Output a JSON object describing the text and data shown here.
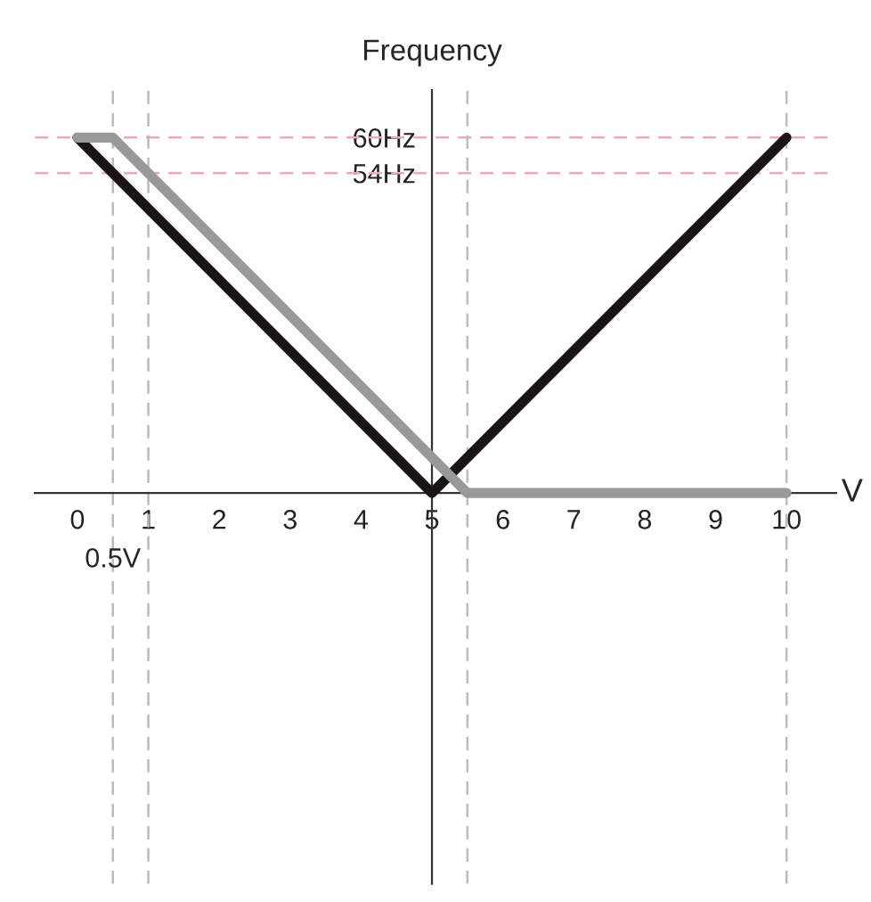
{
  "chart_data": {
    "type": "line",
    "xlabel": "V",
    "ylabel": "Frequency",
    "series": [
      {
        "color": "#1a1414",
        "x": [
          0,
          5,
          10
        ],
        "values": [
          60,
          0,
          60
        ]
      },
      {
        "color": "#999999",
        "x": [
          0,
          0.5,
          5.5,
          10
        ],
        "values": [
          60,
          60,
          0,
          0
        ]
      }
    ],
    "xlim": [
      -0.6,
      10.7
    ],
    "ylim": [
      -66,
      68
    ],
    "xticks": [
      0,
      1,
      2,
      3,
      4,
      5,
      6,
      7,
      8,
      9,
      10
    ],
    "yticks": [
      {
        "value": 54,
        "label": "54Hz"
      },
      {
        "value": 60,
        "label": "60Hz"
      }
    ],
    "ref_lines": [
      {
        "axis": "y",
        "value": 60,
        "color": "#f4a6c0",
        "line_style": "dashed"
      },
      {
        "axis": "y",
        "value": 54,
        "color": "#f4a6c0",
        "line_style": "dashed"
      },
      {
        "axis": "x",
        "value": 0.5,
        "color": "#bbbbbb",
        "line_style": "dashed"
      },
      {
        "axis": "x",
        "value": 1,
        "color": "#bbbbbb",
        "line_style": "dashed"
      },
      {
        "axis": "x",
        "value": 5.5,
        "color": "#bbbbbb",
        "line_style": "dashed"
      },
      {
        "axis": "x",
        "value": 10,
        "color": "#bbbbbb",
        "line_style": "dashed"
      }
    ],
    "annotations": [
      {
        "text": "0.5V",
        "x": 0.5,
        "y": 0
      }
    ],
    "grid": false,
    "legend": false,
    "line_style": "solid",
    "marker": "none"
  }
}
